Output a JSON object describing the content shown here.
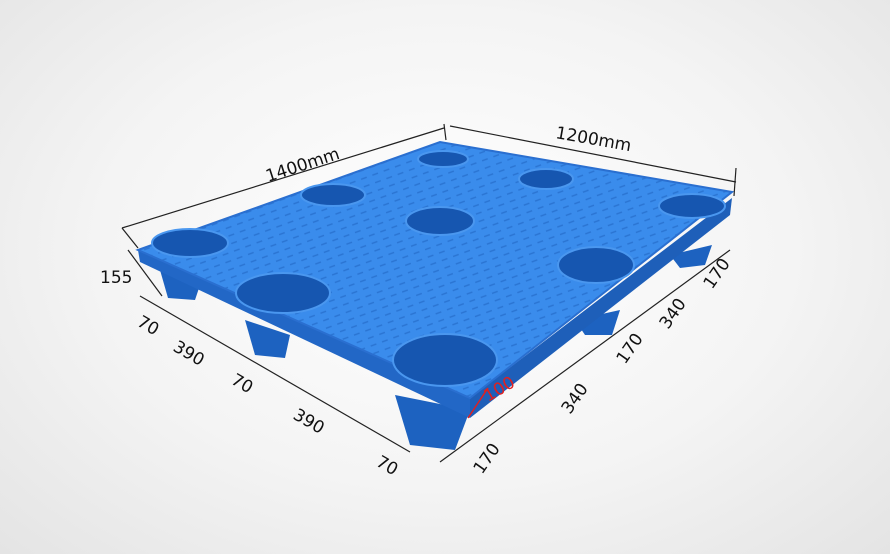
{
  "product": "plastic-pallet",
  "colors": {
    "pallet": "#2f7fe0",
    "pallet_dark": "#1c5fb8",
    "highlight": "#e02020"
  },
  "dimensions": {
    "length": "1400mm",
    "width": "1200mm",
    "height": "155",
    "left_side": [
      "70",
      "390",
      "70",
      "390",
      "70"
    ],
    "right_side": [
      "170",
      "340",
      "170",
      "340",
      "170"
    ],
    "foot_height": "100"
  }
}
